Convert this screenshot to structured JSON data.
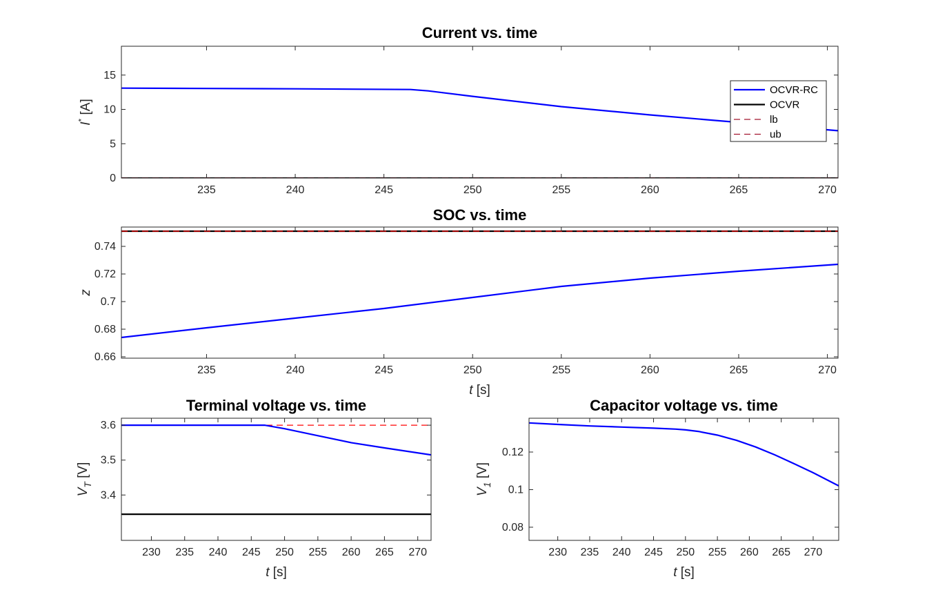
{
  "chart_data": [
    {
      "id": "current",
      "type": "line",
      "title": "Current vs. time",
      "xlabel": "",
      "ylabel": "I* [A]",
      "ylabel_parts": {
        "main": "I",
        "sup": "*",
        "unit": " [A]"
      },
      "xlim": [
        230.2,
        270.6
      ],
      "ylim": [
        0,
        19.2
      ],
      "xticks": [
        235,
        240,
        245,
        250,
        255,
        260,
        265,
        270
      ],
      "yticks": [
        0,
        5,
        10,
        15
      ],
      "legend": {
        "placement": "right",
        "entries": [
          "OCVR-RC",
          "OCVR",
          "lb",
          "ub"
        ]
      },
      "series": [
        {
          "name": "OCVR-RC",
          "color": "#0000ff",
          "style": "solid",
          "x": [
            230.2,
            235,
            240,
            246.5,
            247.5,
            250,
            255,
            260,
            265,
            270.6
          ],
          "y": [
            13.1,
            13.05,
            13.0,
            12.9,
            12.7,
            11.9,
            10.4,
            9.2,
            8.1,
            6.9
          ]
        },
        {
          "name": "OCVR",
          "color": "#000000",
          "style": "solid",
          "x": [
            230.2,
            270.6
          ],
          "y": [
            0,
            0
          ]
        },
        {
          "name": "lb",
          "color": "#a2142f",
          "style": "dashed",
          "x": [
            230.2,
            270.6
          ],
          "y": [
            0,
            0
          ]
        },
        {
          "name": "ub",
          "color": "#a2142f",
          "style": "dashed",
          "x": [
            230.2,
            270.6
          ],
          "y": [
            0,
            0
          ]
        }
      ]
    },
    {
      "id": "soc",
      "type": "line",
      "title": "SOC vs. time",
      "xlabel": "t [s]",
      "ylabel": "z",
      "xlim": [
        230.2,
        270.6
      ],
      "ylim": [
        0.659,
        0.754
      ],
      "xticks": [
        235,
        240,
        245,
        250,
        255,
        260,
        265,
        270
      ],
      "yticks": [
        0.66,
        0.68,
        0.7,
        0.72,
        0.74
      ],
      "series": [
        {
          "name": "",
          "color": "#0000ff",
          "style": "solid",
          "x": [
            230.2,
            235,
            240,
            245,
            250,
            255,
            260,
            265,
            270.6
          ],
          "y": [
            0.674,
            0.681,
            0.688,
            0.695,
            0.703,
            0.711,
            0.717,
            0.722,
            0.727
          ]
        },
        {
          "name": "",
          "color": "#000000",
          "style": "solid",
          "x": [
            230.2,
            270.6
          ],
          "y": [
            0.751,
            0.751
          ]
        },
        {
          "name": "",
          "color": "#ff0000",
          "style": "dashed",
          "x": [
            230.2,
            270.6
          ],
          "y": [
            0.751,
            0.751
          ]
        }
      ]
    },
    {
      "id": "terminal",
      "type": "line",
      "title": "Terminal voltage vs. time",
      "xlabel": "t [s]",
      "ylabel": "V_T [V]",
      "ylabel_parts": {
        "main": "V",
        "sub": "T",
        "unit": " [V]"
      },
      "xlim": [
        225.5,
        272
      ],
      "ylim": [
        3.27,
        3.62
      ],
      "xticks": [
        230,
        235,
        240,
        245,
        250,
        255,
        260,
        265,
        270
      ],
      "yticks": [
        3.4,
        3.5,
        3.6
      ],
      "series": [
        {
          "name": "",
          "color": "#ff0000",
          "style": "dashed",
          "x": [
            225.5,
            272
          ],
          "y": [
            3.6,
            3.6
          ]
        },
        {
          "name": "",
          "color": "#0000ff",
          "style": "solid",
          "x": [
            225.5,
            247,
            250,
            255,
            260,
            265,
            272
          ],
          "y": [
            3.6,
            3.6,
            3.59,
            3.57,
            3.55,
            3.535,
            3.515
          ]
        },
        {
          "name": "",
          "color": "#000000",
          "style": "solid",
          "x": [
            225.5,
            272
          ],
          "y": [
            3.345,
            3.345
          ]
        }
      ]
    },
    {
      "id": "capacitor",
      "type": "line",
      "title": "Capacitor voltage vs. time",
      "xlabel": "t [s]",
      "ylabel": "V_1 [V]",
      "ylabel_parts": {
        "main": "V",
        "sub": "1",
        "unit": " [V]"
      },
      "xlim": [
        225.5,
        274
      ],
      "ylim": [
        0.073,
        0.138
      ],
      "xticks": [
        230,
        235,
        240,
        245,
        250,
        255,
        260,
        265,
        270
      ],
      "yticks": [
        0.08,
        0.1,
        0.12
      ],
      "series": [
        {
          "name": "",
          "color": "#0000ff",
          "style": "solid",
          "x": [
            225.5,
            230,
            235,
            240,
            245,
            248.5,
            250,
            252,
            255,
            258,
            261,
            264,
            267,
            270,
            274
          ],
          "y": [
            0.1355,
            0.1347,
            0.1339,
            0.1333,
            0.1327,
            0.1322,
            0.1318,
            0.131,
            0.129,
            0.1262,
            0.1227,
            0.1185,
            0.1138,
            0.109,
            0.102
          ]
        }
      ]
    }
  ]
}
